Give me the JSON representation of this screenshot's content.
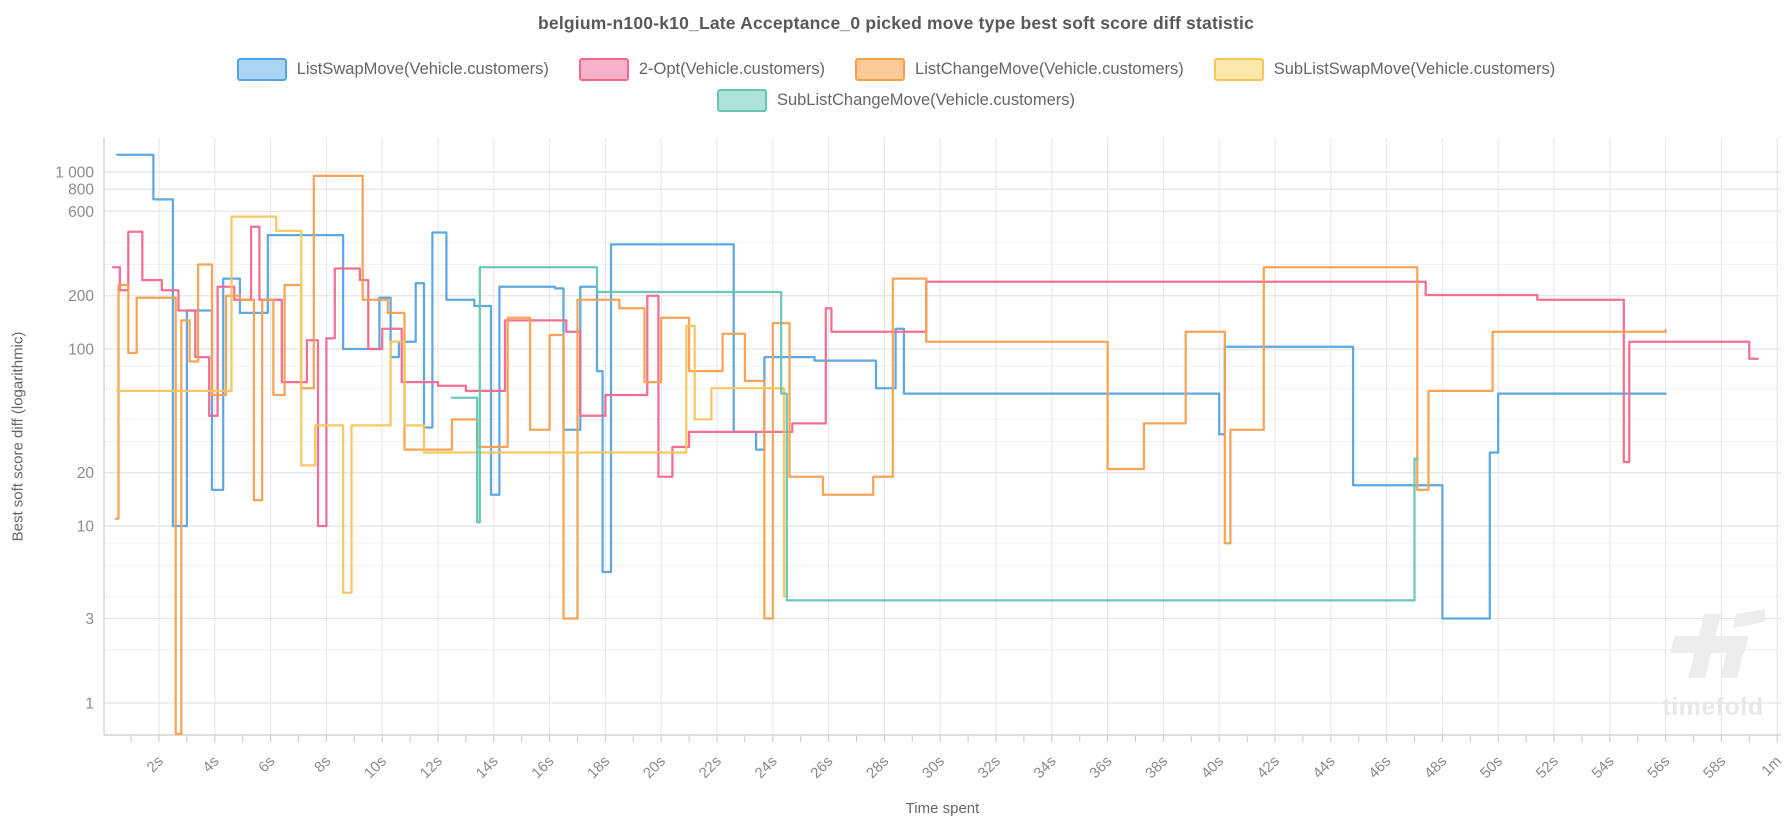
{
  "title": "belgium-n100-k10_Late Acceptance_0 picked move type best soft score diff statistic",
  "watermark": {
    "text": "timefold",
    "logo_icon": "timefold-tf-logo",
    "color": "#e9e9e9"
  },
  "axes": {
    "x": {
      "label": "Time spent"
    },
    "y": {
      "label": "Best soft score diff (logarithmic)"
    }
  },
  "chart_data": {
    "type": "line",
    "step": true,
    "title": "belgium-n100-k10_Late Acceptance_0 picked move type best soft score diff statistic",
    "xlabel": "Time spent",
    "ylabel": "Best soft score diff (logarithmic)",
    "x_unit": "seconds",
    "y_scale": "logarithmic",
    "xlim": [
      0,
      60.5
    ],
    "ylim": [
      1,
      1500
    ],
    "grid": true,
    "legend_position": "top",
    "x_ticks": [
      {
        "t": 2,
        "label": "2s"
      },
      {
        "t": 4,
        "label": "4s"
      },
      {
        "t": 6,
        "label": "6s"
      },
      {
        "t": 8,
        "label": "8s"
      },
      {
        "t": 10,
        "label": "10s"
      },
      {
        "t": 12,
        "label": "12s"
      },
      {
        "t": 14,
        "label": "14s"
      },
      {
        "t": 16,
        "label": "16s"
      },
      {
        "t": 18,
        "label": "18s"
      },
      {
        "t": 20,
        "label": "20s"
      },
      {
        "t": 22,
        "label": "22s"
      },
      {
        "t": 24,
        "label": "24s"
      },
      {
        "t": 26,
        "label": "26s"
      },
      {
        "t": 28,
        "label": "28s"
      },
      {
        "t": 30,
        "label": "30s"
      },
      {
        "t": 32,
        "label": "32s"
      },
      {
        "t": 34,
        "label": "34s"
      },
      {
        "t": 36,
        "label": "36s"
      },
      {
        "t": 38,
        "label": "38s"
      },
      {
        "t": 40,
        "label": "40s"
      },
      {
        "t": 42,
        "label": "42s"
      },
      {
        "t": 44,
        "label": "44s"
      },
      {
        "t": 46,
        "label": "46s"
      },
      {
        "t": 48,
        "label": "48s"
      },
      {
        "t": 50,
        "label": "50s"
      },
      {
        "t": 52,
        "label": "52s"
      },
      {
        "t": 54,
        "label": "54s"
      },
      {
        "t": 56,
        "label": "56s"
      },
      {
        "t": 58,
        "label": "58s"
      },
      {
        "t": 60,
        "label": "1m"
      }
    ],
    "x_minor_tick_seconds": 1,
    "y_ticks": [
      {
        "v": 1000,
        "label": "1 000"
      },
      {
        "v": 800,
        "label": "800"
      },
      {
        "v": 600,
        "label": "600"
      },
      {
        "v": 200,
        "label": "200"
      },
      {
        "v": 100,
        "label": "100"
      },
      {
        "v": 20,
        "label": "20"
      },
      {
        "v": 10,
        "label": "10"
      },
      {
        "v": 3,
        "label": "3"
      },
      {
        "v": 1,
        "label": "1"
      }
    ],
    "y_minor_gridlines": [
      2,
      4,
      6,
      8,
      30,
      40,
      60,
      80,
      300,
      400
    ],
    "series": [
      {
        "name": "ListSwapMove(Vehicle.customers)",
        "color": "#55a4e1",
        "fill": "#a9d4f2",
        "points": [
          [
            0.5,
            1250
          ],
          [
            1.8,
            700
          ],
          [
            2.5,
            10
          ],
          [
            3.0,
            165
          ],
          [
            3.9,
            16
          ],
          [
            4.3,
            250
          ],
          [
            4.9,
            160
          ],
          [
            5.9,
            440
          ],
          [
            8.6,
            100
          ],
          [
            9.9,
            195
          ],
          [
            10.3,
            90
          ],
          [
            10.6,
            110
          ],
          [
            11.2,
            235
          ],
          [
            11.5,
            36
          ],
          [
            11.8,
            455
          ],
          [
            12.3,
            190
          ],
          [
            13.3,
            175
          ],
          [
            13.9,
            15
          ],
          [
            14.2,
            225
          ],
          [
            16.2,
            220
          ],
          [
            16.5,
            35
          ],
          [
            17.1,
            225
          ],
          [
            17.7,
            75
          ],
          [
            17.9,
            5.5
          ],
          [
            18.2,
            390
          ],
          [
            22.6,
            34
          ],
          [
            23.4,
            27
          ],
          [
            23.7,
            90
          ],
          [
            25.5,
            86
          ],
          [
            27.7,
            60
          ],
          [
            28.4,
            130
          ],
          [
            28.7,
            56
          ],
          [
            40.0,
            33
          ],
          [
            40.2,
            103
          ],
          [
            44.8,
            17
          ],
          [
            48.0,
            3
          ],
          [
            49.7,
            26
          ],
          [
            50.0,
            56
          ],
          [
            56.0,
            56
          ]
        ]
      },
      {
        "name": "2-Opt(Vehicle.customers)",
        "color": "#f2688c",
        "fill": "#f9b3c8",
        "points": [
          [
            0.35,
            290
          ],
          [
            0.6,
            215
          ],
          [
            0.9,
            460
          ],
          [
            1.4,
            245
          ],
          [
            2.1,
            215
          ],
          [
            2.7,
            165
          ],
          [
            3.3,
            90
          ],
          [
            3.8,
            42
          ],
          [
            4.1,
            225
          ],
          [
            4.7,
            190
          ],
          [
            5.3,
            490
          ],
          [
            5.6,
            190
          ],
          [
            6.4,
            65
          ],
          [
            7.3,
            112
          ],
          [
            7.7,
            10
          ],
          [
            8.0,
            115
          ],
          [
            8.3,
            285
          ],
          [
            9.2,
            245
          ],
          [
            9.5,
            100
          ],
          [
            10.0,
            130
          ],
          [
            10.7,
            65
          ],
          [
            12.0,
            62
          ],
          [
            13.0,
            58
          ],
          [
            14.4,
            145
          ],
          [
            16.6,
            125
          ],
          [
            17.1,
            42
          ],
          [
            18.0,
            55
          ],
          [
            19.5,
            200
          ],
          [
            19.9,
            19
          ],
          [
            20.4,
            28
          ],
          [
            21.0,
            34
          ],
          [
            24.7,
            38
          ],
          [
            25.9,
            170
          ],
          [
            26.1,
            125
          ],
          [
            29.5,
            240
          ],
          [
            47.4,
            202
          ],
          [
            51.4,
            190
          ],
          [
            54.5,
            23
          ],
          [
            54.7,
            110
          ],
          [
            59.0,
            88
          ],
          [
            59.3,
            88
          ]
        ]
      },
      {
        "name": "ListChangeMove(Vehicle.customers)",
        "color": "#f6a04f",
        "fill": "#fbcb97",
        "points": [
          [
            0.45,
            11
          ],
          [
            0.55,
            230
          ],
          [
            0.9,
            95
          ],
          [
            1.2,
            195
          ],
          [
            2.6,
            0.4
          ],
          [
            2.8,
            145
          ],
          [
            3.1,
            85
          ],
          [
            3.4,
            300
          ],
          [
            3.9,
            55
          ],
          [
            4.4,
            200
          ],
          [
            4.9,
            190
          ],
          [
            5.4,
            14
          ],
          [
            5.7,
            190
          ],
          [
            6.1,
            55
          ],
          [
            6.5,
            230
          ],
          [
            7.1,
            60
          ],
          [
            7.55,
            950
          ],
          [
            9.3,
            190
          ],
          [
            10.2,
            160
          ],
          [
            10.8,
            27
          ],
          [
            12.5,
            40
          ],
          [
            13.4,
            28
          ],
          [
            14.5,
            150
          ],
          [
            15.3,
            35
          ],
          [
            16.0,
            120
          ],
          [
            16.5,
            3
          ],
          [
            17.0,
            190
          ],
          [
            18.5,
            170
          ],
          [
            19.4,
            65
          ],
          [
            20.0,
            150
          ],
          [
            21.0,
            75
          ],
          [
            22.2,
            122
          ],
          [
            23.0,
            66
          ],
          [
            23.7,
            3
          ],
          [
            24.0,
            140
          ],
          [
            24.6,
            19
          ],
          [
            25.8,
            15
          ],
          [
            27.6,
            19
          ],
          [
            28.3,
            250
          ],
          [
            29.5,
            110
          ],
          [
            36.0,
            21
          ],
          [
            37.3,
            38
          ],
          [
            38.8,
            125
          ],
          [
            40.2,
            8
          ],
          [
            40.4,
            35
          ],
          [
            41.6,
            290
          ],
          [
            47.1,
            16
          ],
          [
            47.5,
            58
          ],
          [
            49.8,
            125
          ],
          [
            56.0,
            128
          ]
        ]
      },
      {
        "name": "SubListSwapMove(Vehicle.customers)",
        "color": "#f6c65c",
        "fill": "#fce8a9",
        "points": [
          [
            0.5,
            58
          ],
          [
            4.6,
            560
          ],
          [
            6.2,
            465
          ],
          [
            7.1,
            22
          ],
          [
            7.6,
            37
          ],
          [
            8.6,
            4.2
          ],
          [
            8.9,
            37
          ],
          [
            10.3,
            110
          ],
          [
            10.8,
            37
          ],
          [
            11.5,
            26
          ],
          [
            20.9,
            135
          ],
          [
            21.2,
            40
          ],
          [
            21.8,
            60
          ],
          [
            24.4,
            4
          ],
          [
            24.5,
            4
          ]
        ]
      },
      {
        "name": "SubListChangeMove(Vehicle.customers)",
        "color": "#64c5b4",
        "fill": "#aee1d7",
        "points": [
          [
            12.5,
            53
          ],
          [
            13.4,
            10.5
          ],
          [
            13.5,
            290
          ],
          [
            17.7,
            210
          ],
          [
            24.3,
            56
          ],
          [
            24.5,
            3.8
          ],
          [
            47.0,
            24
          ],
          [
            47.1,
            24
          ]
        ]
      }
    ]
  }
}
